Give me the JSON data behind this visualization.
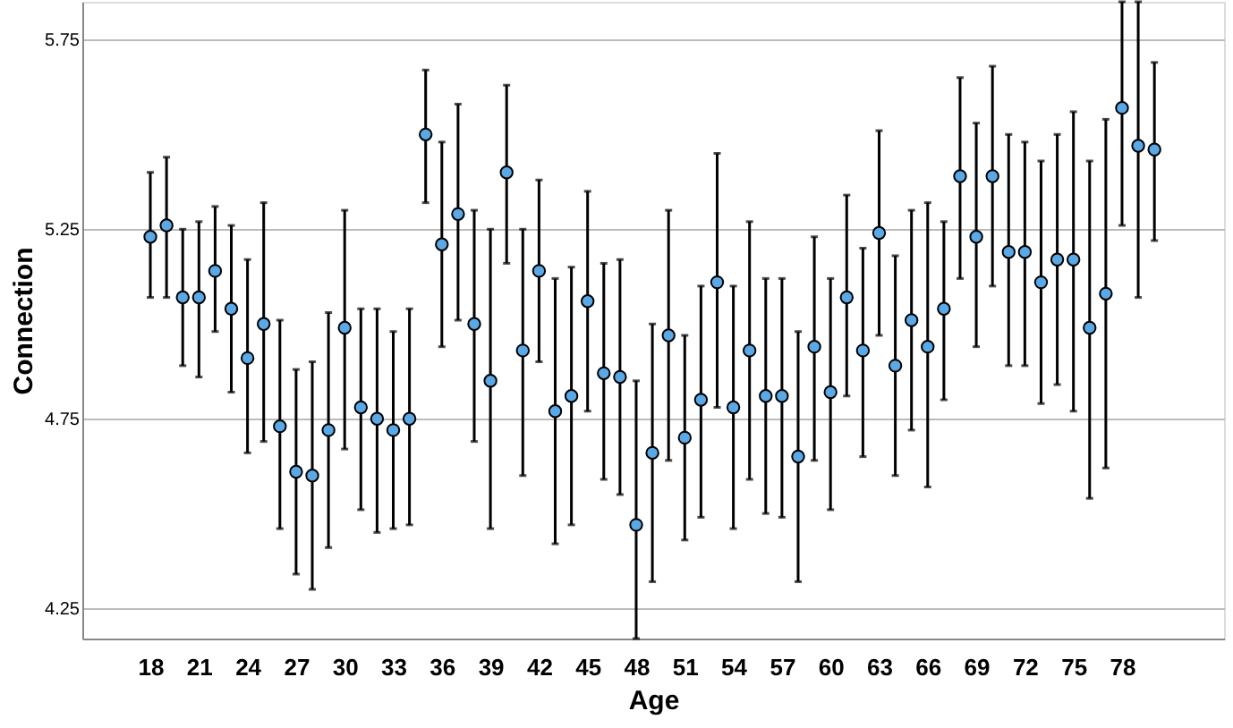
{
  "chart_data": {
    "type": "scatter",
    "xlabel": "Age",
    "ylabel": "Connection",
    "x": [
      18,
      19,
      20,
      21,
      22,
      23,
      24,
      25,
      26,
      27,
      28,
      29,
      30,
      31,
      32,
      33,
      34,
      35,
      36,
      37,
      38,
      39,
      40,
      41,
      42,
      43,
      44,
      45,
      46,
      47,
      48,
      49,
      50,
      51,
      52,
      53,
      54,
      55,
      56,
      57,
      58,
      59,
      60,
      61,
      62,
      63,
      64,
      65,
      66,
      67,
      68,
      69,
      70,
      71,
      72,
      73,
      74,
      75,
      76,
      77,
      78,
      79,
      80
    ],
    "series": [
      {
        "color": "#5aa9e6",
        "values": [
          5.23,
          5.26,
          5.07,
          5.07,
          5.14,
          5.04,
          4.91,
          5.0,
          4.73,
          4.61,
          4.6,
          4.72,
          4.99,
          4.78,
          4.75,
          4.72,
          4.75,
          5.5,
          5.21,
          5.29,
          5.0,
          4.85,
          5.4,
          4.93,
          5.14,
          4.77,
          4.81,
          5.06,
          4.87,
          4.86,
          4.47,
          4.66,
          4.97,
          4.7,
          4.8,
          5.11,
          4.78,
          4.93,
          4.81,
          4.81,
          4.65,
          4.94,
          4.82,
          5.07,
          4.93,
          5.24,
          4.89,
          5.01,
          4.94,
          5.04,
          5.39,
          5.23,
          5.39,
          5.19,
          5.19,
          5.11,
          5.17,
          5.17,
          4.99,
          5.08,
          5.57,
          5.47,
          5.46
        ],
        "errors": [
          [
            5.07,
            5.4
          ],
          [
            5.07,
            5.44
          ],
          [
            4.89,
            5.25
          ],
          [
            4.86,
            5.27
          ],
          [
            4.98,
            5.31
          ],
          [
            4.82,
            5.26
          ],
          [
            4.66,
            5.17
          ],
          [
            4.69,
            5.32
          ],
          [
            4.46,
            5.01
          ],
          [
            4.34,
            4.88
          ],
          [
            4.3,
            4.9
          ],
          [
            4.41,
            5.03
          ],
          [
            4.67,
            5.3
          ],
          [
            4.51,
            5.04
          ],
          [
            4.45,
            5.04
          ],
          [
            4.46,
            4.98
          ],
          [
            4.47,
            5.04
          ],
          [
            5.32,
            5.67
          ],
          [
            4.94,
            5.48
          ],
          [
            5.01,
            5.58
          ],
          [
            4.69,
            5.3
          ],
          [
            4.46,
            5.25
          ],
          [
            5.16,
            5.63
          ],
          [
            4.6,
            5.25
          ],
          [
            4.9,
            5.38
          ],
          [
            4.42,
            5.12
          ],
          [
            4.47,
            5.15
          ],
          [
            4.77,
            5.35
          ],
          [
            4.59,
            5.16
          ],
          [
            4.55,
            5.17
          ],
          [
            4.17,
            4.85
          ],
          [
            4.32,
            5.0
          ],
          [
            4.64,
            5.3
          ],
          [
            4.43,
            4.97
          ],
          [
            4.49,
            5.1
          ],
          [
            4.78,
            5.45
          ],
          [
            4.46,
            5.1
          ],
          [
            4.59,
            5.27
          ],
          [
            4.5,
            5.12
          ],
          [
            4.49,
            5.12
          ],
          [
            4.32,
            4.98
          ],
          [
            4.64,
            5.23
          ],
          [
            4.51,
            5.12
          ],
          [
            4.81,
            5.34
          ],
          [
            4.65,
            5.2
          ],
          [
            4.97,
            5.51
          ],
          [
            4.6,
            5.18
          ],
          [
            4.72,
            5.3
          ],
          [
            4.57,
            5.32
          ],
          [
            4.8,
            5.27
          ],
          [
            5.12,
            5.65
          ],
          [
            4.94,
            5.53
          ],
          [
            5.1,
            5.68
          ],
          [
            4.89,
            5.5
          ],
          [
            4.89,
            5.48
          ],
          [
            4.79,
            5.43
          ],
          [
            4.84,
            5.5
          ],
          [
            4.77,
            5.56
          ],
          [
            4.54,
            5.43
          ],
          [
            4.62,
            5.54
          ],
          [
            5.26,
            5.85
          ],
          [
            5.07,
            5.85
          ],
          [
            5.22,
            5.69
          ]
        ]
      }
    ],
    "xlim": [
      13.8,
      84.3
    ],
    "xticks": [
      18,
      21,
      24,
      27,
      30,
      33,
      36,
      39,
      42,
      45,
      48,
      51,
      54,
      57,
      60,
      63,
      66,
      69,
      72,
      75,
      78
    ],
    "ylim": [
      4.17,
      5.85
    ],
    "yticks": [
      4.25,
      4.75,
      5.25,
      5.75
    ],
    "grid": "y",
    "marker": "circle"
  }
}
